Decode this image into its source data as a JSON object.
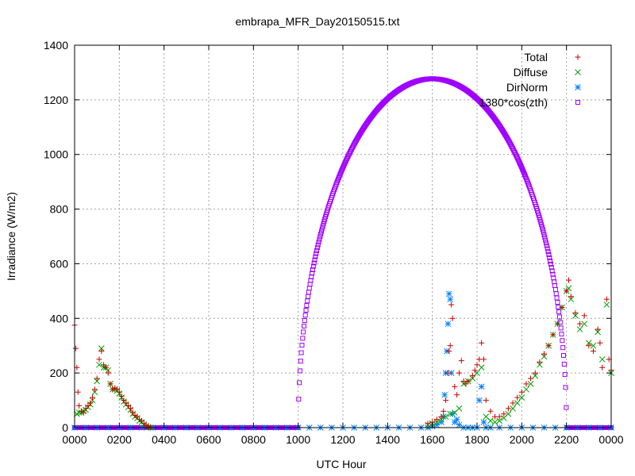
{
  "chart_data": {
    "type": "scatter",
    "title": "embrapa_MFR_Day20150515.txt",
    "xlabel": "UTC Hour",
    "ylabel": "Irradiance (W/m2)",
    "xlim": [
      0,
      24
    ],
    "ylim": [
      0,
      1400
    ],
    "grid": true,
    "legend_position": "top-right",
    "x_ticks": [
      {
        "x": 0,
        "label": "0000"
      },
      {
        "x": 2,
        "label": "0200"
      },
      {
        "x": 4,
        "label": "0400"
      },
      {
        "x": 6,
        "label": "0600"
      },
      {
        "x": 8,
        "label": "0800"
      },
      {
        "x": 10,
        "label": "1000"
      },
      {
        "x": 12,
        "label": "1200"
      },
      {
        "x": 14,
        "label": "1400"
      },
      {
        "x": 16,
        "label": "1600"
      },
      {
        "x": 18,
        "label": "1800"
      },
      {
        "x": 20,
        "label": "2000"
      },
      {
        "x": 22,
        "label": "2200"
      },
      {
        "x": 24,
        "label": "0000"
      }
    ],
    "y_ticks": [
      0,
      200,
      400,
      600,
      800,
      1000,
      1200,
      1400
    ],
    "series": [
      {
        "name": "Total",
        "marker": "plus",
        "color": "#cc0000",
        "points": [
          [
            0.0,
            375
          ],
          [
            0.05,
            290
          ],
          [
            0.1,
            220
          ],
          [
            0.15,
            130
          ],
          [
            0.2,
            80
          ],
          [
            0.3,
            60
          ],
          [
            0.4,
            55
          ],
          [
            0.5,
            70
          ],
          [
            0.6,
            80
          ],
          [
            0.7,
            90
          ],
          [
            0.8,
            110
          ],
          [
            0.9,
            140
          ],
          [
            1.0,
            180
          ],
          [
            1.1,
            250
          ],
          [
            1.2,
            280
          ],
          [
            1.3,
            230
          ],
          [
            1.4,
            220
          ],
          [
            1.5,
            200
          ],
          [
            1.6,
            160
          ],
          [
            1.7,
            140
          ],
          [
            1.8,
            145
          ],
          [
            1.9,
            140
          ],
          [
            2.0,
            130
          ],
          [
            2.1,
            115
          ],
          [
            2.2,
            100
          ],
          [
            2.3,
            90
          ],
          [
            2.4,
            80
          ],
          [
            2.5,
            70
          ],
          [
            2.6,
            55
          ],
          [
            2.7,
            45
          ],
          [
            2.8,
            40
          ],
          [
            2.9,
            30
          ],
          [
            3.0,
            25
          ],
          [
            3.1,
            15
          ],
          [
            3.2,
            8
          ],
          [
            3.3,
            4
          ],
          [
            3.4,
            0
          ],
          [
            15.8,
            15
          ],
          [
            16.0,
            20
          ],
          [
            16.2,
            30
          ],
          [
            16.4,
            40
          ],
          [
            16.5,
            60
          ],
          [
            16.6,
            100
          ],
          [
            16.7,
            200
          ],
          [
            16.75,
            280
          ],
          [
            16.8,
            300
          ],
          [
            16.85,
            450
          ],
          [
            16.9,
            400
          ],
          [
            17.0,
            150
          ],
          [
            17.1,
            120
          ],
          [
            17.2,
            200
          ],
          [
            17.3,
            245
          ],
          [
            17.4,
            170
          ],
          [
            17.5,
            160
          ],
          [
            17.6,
            170
          ],
          [
            17.8,
            190
          ],
          [
            17.9,
            210
          ],
          [
            18.0,
            230
          ],
          [
            18.1,
            250
          ],
          [
            18.2,
            310
          ],
          [
            18.3,
            250
          ],
          [
            18.4,
            100
          ],
          [
            18.6,
            60
          ],
          [
            18.8,
            40
          ],
          [
            19.0,
            40
          ],
          [
            19.2,
            50
          ],
          [
            19.4,
            70
          ],
          [
            19.6,
            90
          ],
          [
            19.8,
            110
          ],
          [
            20.0,
            130
          ],
          [
            20.2,
            160
          ],
          [
            20.4,
            180
          ],
          [
            20.6,
            200
          ],
          [
            20.8,
            240
          ],
          [
            21.0,
            270
          ],
          [
            21.2,
            300
          ],
          [
            21.4,
            340
          ],
          [
            21.6,
            380
          ],
          [
            21.8,
            440
          ],
          [
            22.0,
            500
          ],
          [
            22.1,
            540
          ],
          [
            22.2,
            480
          ],
          [
            22.4,
            420
          ],
          [
            22.6,
            380
          ],
          [
            22.8,
            410
          ],
          [
            23.0,
            300
          ],
          [
            23.2,
            280
          ],
          [
            23.4,
            360
          ],
          [
            23.5,
            310
          ],
          [
            23.6,
            220
          ],
          [
            23.8,
            470
          ],
          [
            23.9,
            250
          ],
          [
            24.0,
            210
          ]
        ]
      },
      {
        "name": "Diffuse",
        "marker": "cross",
        "color": "#00a000",
        "points": [
          [
            0.1,
            50
          ],
          [
            0.2,
            55
          ],
          [
            0.3,
            55
          ],
          [
            0.4,
            60
          ],
          [
            0.5,
            65
          ],
          [
            0.6,
            75
          ],
          [
            0.7,
            85
          ],
          [
            0.8,
            100
          ],
          [
            0.9,
            130
          ],
          [
            1.0,
            170
          ],
          [
            1.1,
            230
          ],
          [
            1.2,
            290
          ],
          [
            1.3,
            220
          ],
          [
            1.4,
            220
          ],
          [
            1.5,
            210
          ],
          [
            1.6,
            160
          ],
          [
            1.7,
            140
          ],
          [
            1.8,
            140
          ],
          [
            1.9,
            135
          ],
          [
            2.0,
            125
          ],
          [
            2.1,
            110
          ],
          [
            2.2,
            95
          ],
          [
            2.3,
            85
          ],
          [
            2.4,
            75
          ],
          [
            2.5,
            65
          ],
          [
            2.6,
            50
          ],
          [
            2.7,
            40
          ],
          [
            2.8,
            35
          ],
          [
            2.9,
            25
          ],
          [
            3.0,
            20
          ],
          [
            3.1,
            12
          ],
          [
            3.2,
            6
          ],
          [
            3.3,
            2
          ],
          [
            3.4,
            0
          ],
          [
            15.8,
            10
          ],
          [
            16.0,
            15
          ],
          [
            16.2,
            20
          ],
          [
            16.4,
            30
          ],
          [
            16.6,
            40
          ],
          [
            16.8,
            50
          ],
          [
            17.0,
            55
          ],
          [
            17.2,
            70
          ],
          [
            17.4,
            160
          ],
          [
            17.6,
            170
          ],
          [
            17.8,
            180
          ],
          [
            18.0,
            200
          ],
          [
            18.2,
            220
          ],
          [
            18.4,
            40
          ],
          [
            18.6,
            25
          ],
          [
            18.8,
            20
          ],
          [
            19.0,
            25
          ],
          [
            19.2,
            35
          ],
          [
            19.4,
            50
          ],
          [
            19.6,
            70
          ],
          [
            19.8,
            90
          ],
          [
            20.0,
            110
          ],
          [
            20.2,
            140
          ],
          [
            20.4,
            160
          ],
          [
            20.6,
            190
          ],
          [
            20.8,
            230
          ],
          [
            21.0,
            260
          ],
          [
            21.2,
            300
          ],
          [
            21.4,
            340
          ],
          [
            21.6,
            380
          ],
          [
            21.8,
            440
          ],
          [
            22.0,
            500
          ],
          [
            22.1,
            510
          ],
          [
            22.2,
            470
          ],
          [
            22.4,
            410
          ],
          [
            22.6,
            360
          ],
          [
            22.8,
            380
          ],
          [
            23.0,
            310
          ],
          [
            23.2,
            300
          ],
          [
            23.4,
            350
          ],
          [
            23.6,
            250
          ],
          [
            23.8,
            450
          ],
          [
            24.0,
            200
          ]
        ]
      },
      {
        "name": "DirNorm",
        "marker": "star",
        "color": "#0080ff",
        "points": [
          [
            0.0,
            0
          ],
          [
            0.5,
            0
          ],
          [
            1.0,
            0
          ],
          [
            1.5,
            0
          ],
          [
            2.0,
            0
          ],
          [
            2.5,
            0
          ],
          [
            3.0,
            0
          ],
          [
            3.5,
            0
          ],
          [
            4.0,
            0
          ],
          [
            4.5,
            0
          ],
          [
            5.0,
            0
          ],
          [
            5.5,
            0
          ],
          [
            6.0,
            0
          ],
          [
            6.5,
            0
          ],
          [
            7.0,
            0
          ],
          [
            7.5,
            0
          ],
          [
            8.0,
            0
          ],
          [
            8.5,
            0
          ],
          [
            9.0,
            0
          ],
          [
            9.5,
            0
          ],
          [
            10.0,
            0
          ],
          [
            10.5,
            0
          ],
          [
            11.0,
            0
          ],
          [
            11.5,
            0
          ],
          [
            12.0,
            0
          ],
          [
            12.5,
            0
          ],
          [
            13.0,
            0
          ],
          [
            13.5,
            0
          ],
          [
            14.0,
            0
          ],
          [
            14.5,
            0
          ],
          [
            15.0,
            0
          ],
          [
            15.5,
            0
          ],
          [
            15.8,
            0
          ],
          [
            16.0,
            5
          ],
          [
            16.2,
            10
          ],
          [
            16.4,
            20
          ],
          [
            16.5,
            40
          ],
          [
            16.55,
            120
          ],
          [
            16.6,
            200
          ],
          [
            16.65,
            280
          ],
          [
            16.7,
            380
          ],
          [
            16.75,
            490
          ],
          [
            16.8,
            470
          ],
          [
            16.85,
            200
          ],
          [
            16.9,
            50
          ],
          [
            17.0,
            20
          ],
          [
            17.1,
            30
          ],
          [
            17.2,
            10
          ],
          [
            17.4,
            0
          ],
          [
            17.6,
            0
          ],
          [
            17.8,
            0
          ],
          [
            18.0,
            0
          ],
          [
            18.1,
            100
          ],
          [
            18.2,
            150
          ],
          [
            18.3,
            20
          ],
          [
            18.4,
            0
          ],
          [
            18.6,
            0
          ],
          [
            19.0,
            0
          ],
          [
            19.5,
            0
          ],
          [
            20.0,
            0
          ],
          [
            20.5,
            0
          ],
          [
            21.0,
            0
          ],
          [
            21.5,
            0
          ],
          [
            22.0,
            0
          ],
          [
            22.5,
            0
          ],
          [
            23.0,
            0
          ],
          [
            23.5,
            0
          ],
          [
            24.0,
            0
          ]
        ]
      },
      {
        "name": "1380*cos(zth)",
        "marker": "square",
        "color": "#a000ff",
        "sunrise": 10.0,
        "sunset": 22.0,
        "peak_x": 16.0,
        "peak_y": 1277
      }
    ]
  }
}
